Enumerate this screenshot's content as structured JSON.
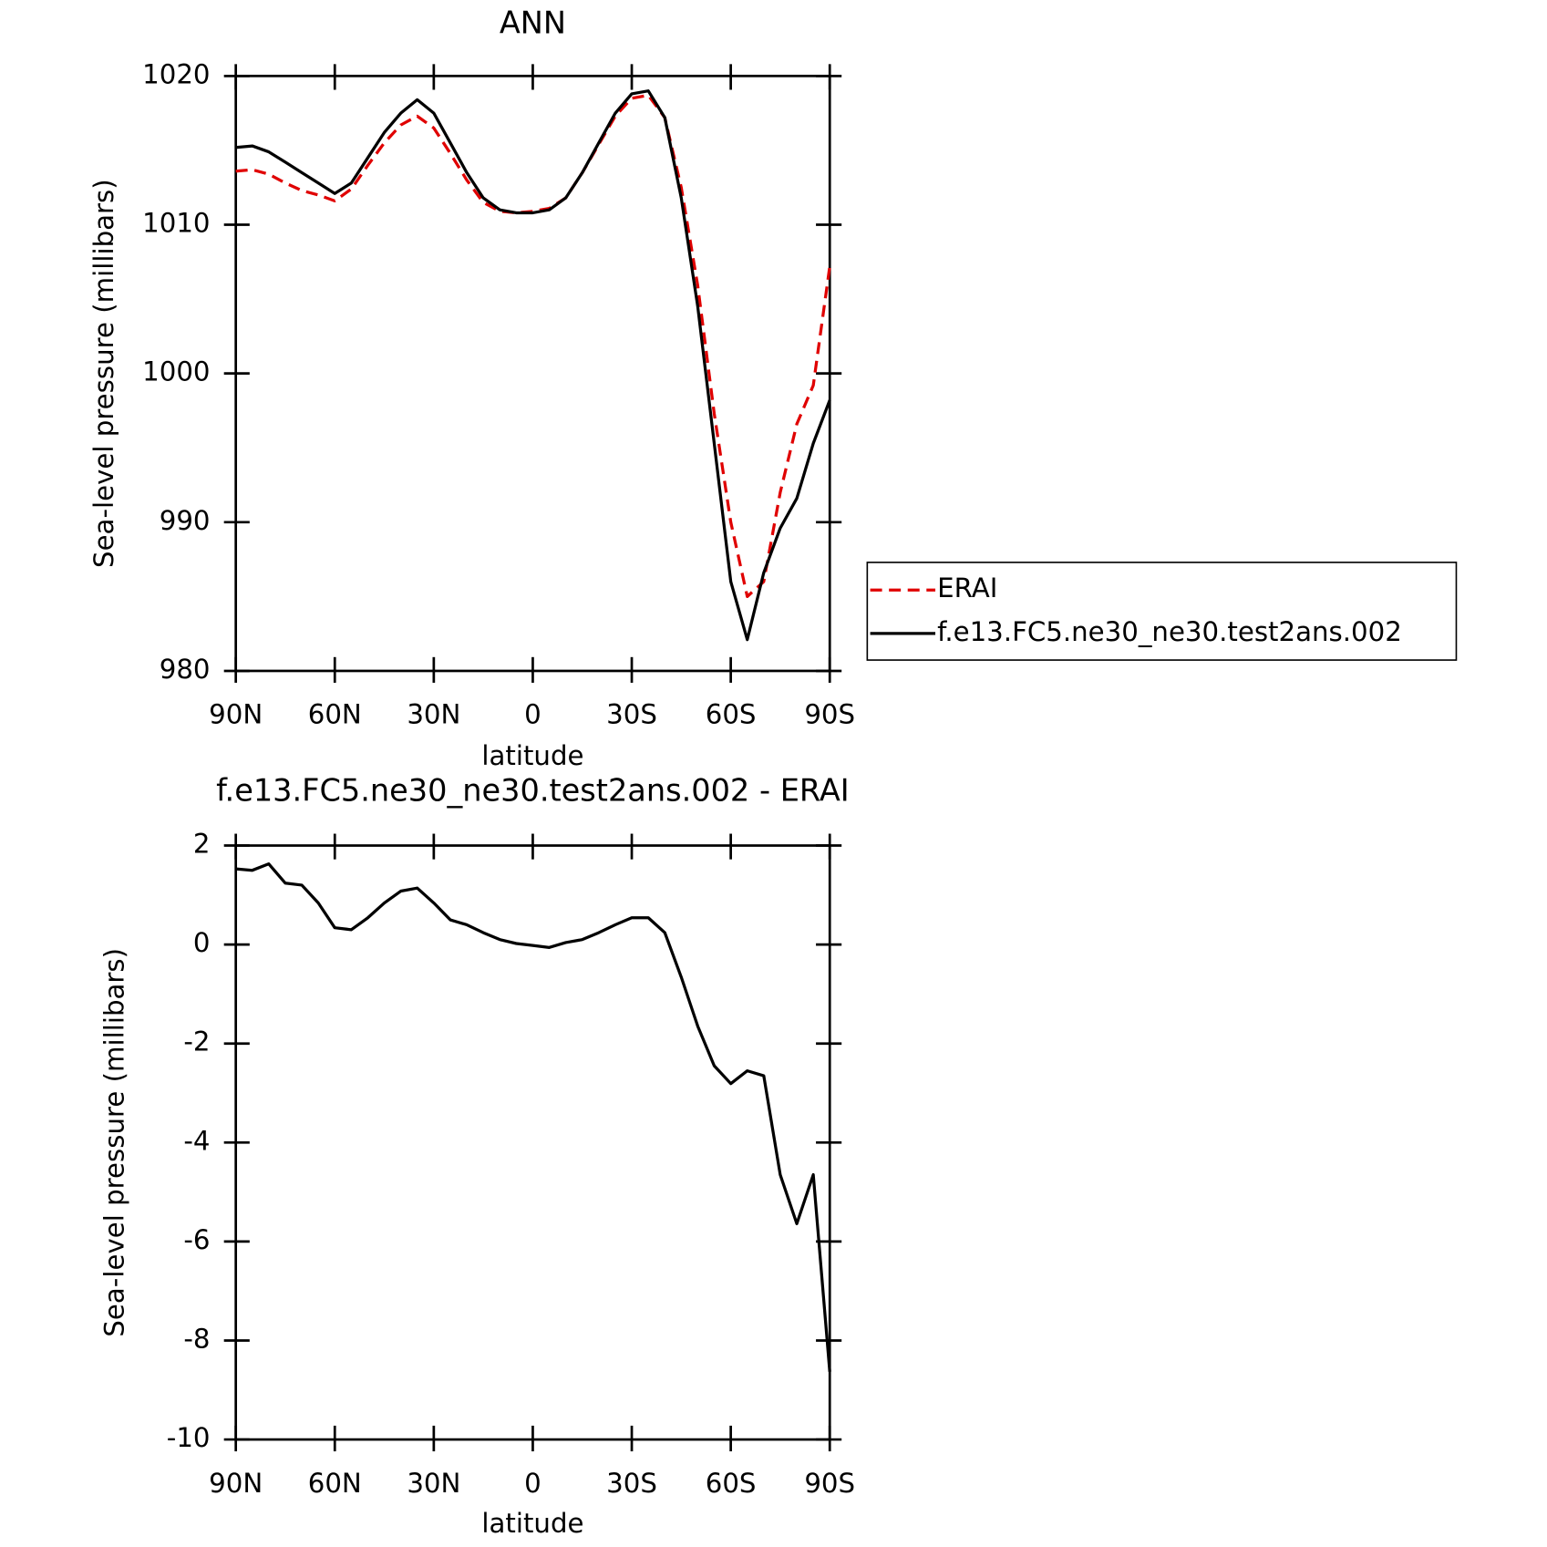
{
  "chart_data": [
    {
      "type": "line",
      "title": "ANN",
      "xlabel": "latitude",
      "ylabel": "Sea-level pressure (millibars)",
      "x": [
        90,
        85,
        80,
        75,
        70,
        65,
        60,
        55,
        50,
        45,
        40,
        35,
        30,
        25,
        20,
        15,
        10,
        5,
        0,
        -5,
        -10,
        -15,
        -20,
        -25,
        -30,
        -35,
        -40,
        -45,
        -50,
        -55,
        -60,
        -65,
        -70,
        -75,
        -80,
        -85,
        -90
      ],
      "xlim": [
        90,
        -90
      ],
      "xticks": [
        {
          "value": 90,
          "label": "90N"
        },
        {
          "value": 60,
          "label": "60N"
        },
        {
          "value": 30,
          "label": "30N"
        },
        0,
        {
          "value": -30,
          "label": "30S"
        },
        {
          "value": -60,
          "label": "60S"
        },
        {
          "value": -90,
          "label": "90S"
        }
      ],
      "ylim": [
        980,
        1020
      ],
      "yticks": [
        980,
        990,
        1000,
        1010,
        1020
      ],
      "legend": "outside-right",
      "series": [
        {
          "name": "ERAI",
          "color": "#e00000",
          "dash": true,
          "values": [
            1013.6,
            1013.7,
            1013.4,
            1012.8,
            1012.3,
            1012.0,
            1011.6,
            1012.4,
            1014.0,
            1015.5,
            1016.7,
            1017.3,
            1016.5,
            1014.8,
            1013.0,
            1011.5,
            1010.9,
            1010.8,
            1010.9,
            1011.1,
            1011.8,
            1013.5,
            1015.4,
            1017.3,
            1018.5,
            1018.7,
            1017.2,
            1012.5,
            1005.9,
            997.3,
            990.0,
            985.0,
            986.0,
            992.0,
            996.6,
            999.2,
            1007.2
          ]
        },
        {
          "name": "f.e13.FC5.ne30_ne30.test2ans.002",
          "color": "#000000",
          "dash": false,
          "values": [
            1015.2,
            1015.3,
            1014.9,
            1014.2,
            1013.5,
            1012.8,
            1012.1,
            1012.8,
            1014.5,
            1016.2,
            1017.5,
            1018.4,
            1017.5,
            1015.5,
            1013.5,
            1011.8,
            1011.0,
            1010.8,
            1010.8,
            1011.0,
            1011.8,
            1013.5,
            1015.5,
            1017.5,
            1018.8,
            1019.0,
            1017.2,
            1011.8,
            1004.5,
            995.3,
            986.0,
            982.1,
            986.6,
            989.6,
            991.6,
            995.3,
            998.2
          ]
        }
      ]
    },
    {
      "type": "line",
      "title": "f.e13.FC5.ne30_ne30.test2ans.002 - ERAI",
      "xlabel": "latitude",
      "ylabel": "Sea-level pressure (millibars)",
      "x": [
        90,
        85,
        80,
        75,
        70,
        65,
        60,
        55,
        50,
        45,
        40,
        35,
        30,
        25,
        20,
        15,
        10,
        5,
        0,
        -5,
        -10,
        -15,
        -20,
        -25,
        -30,
        -35,
        -40,
        -45,
        -50,
        -55,
        -60,
        -65,
        -70,
        -75,
        -80,
        -85,
        -90
      ],
      "xlim": [
        90,
        -90
      ],
      "xticks": [
        {
          "value": 90,
          "label": "90N"
        },
        {
          "value": 60,
          "label": "60N"
        },
        {
          "value": 30,
          "label": "30N"
        },
        0,
        {
          "value": -30,
          "label": "30S"
        },
        {
          "value": -60,
          "label": "60S"
        },
        {
          "value": -90,
          "label": "90S"
        }
      ],
      "ylim": [
        -10,
        2
      ],
      "yticks": [
        -10,
        -8,
        -6,
        -4,
        -2,
        0,
        2
      ],
      "series": [
        {
          "color": "#000000",
          "dash": false,
          "values": [
            1.53,
            1.5,
            1.63,
            1.24,
            1.2,
            0.84,
            0.34,
            0.3,
            0.54,
            0.84,
            1.08,
            1.14,
            0.84,
            0.5,
            0.4,
            0.24,
            0.1,
            0.02,
            -0.02,
            -0.06,
            0.04,
            0.1,
            0.24,
            0.4,
            0.54,
            0.54,
            0.24,
            -0.66,
            -1.65,
            -2.45,
            -2.81,
            -2.55,
            -2.65,
            -4.65,
            -5.64,
            -4.65,
            -8.63
          ]
        }
      ]
    }
  ]
}
